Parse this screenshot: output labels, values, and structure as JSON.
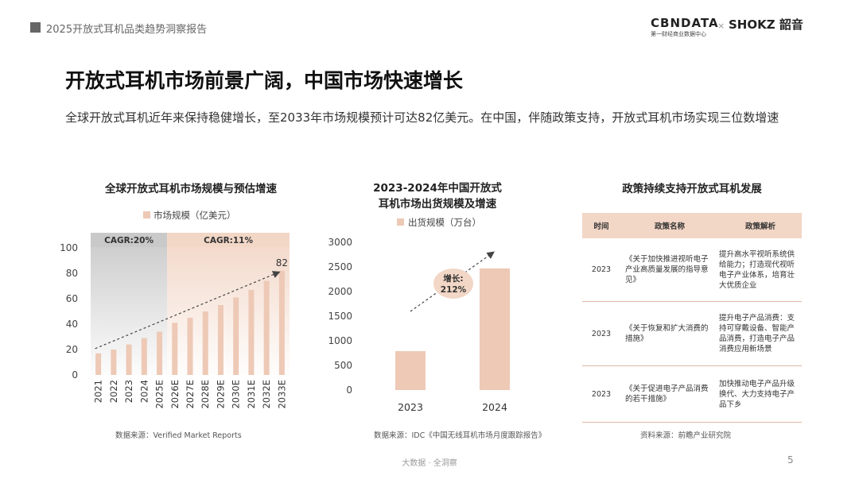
{
  "header": {
    "report_title": "2025开放式耳机品类趋势洞察报告",
    "logo_cbn": "CBNDATA",
    "logo_cbn_sub": "第一财经商业数据中心",
    "logo_separator": "×",
    "logo_shokz": "SHOKZ 韶音"
  },
  "headline": "开放式耳机市场前景广阔，中国市场快速增长",
  "intro": "全球开放式耳机近年来保持稳健增长，至2033年市场规模预计可达82亿美元。在中国，伴随政策支持，开放式耳机市场实现三位数增速",
  "colors": {
    "bar": "#edc9b6",
    "cagr1_band": "#c9c9c9",
    "cagr2_band": "#f2d6c6",
    "accent": "#c0623a"
  },
  "chart_data": [
    {
      "type": "bar",
      "title": "全球开放式耳机市场规模与预估增速",
      "legend": [
        "市场规模（亿美元）"
      ],
      "categories": [
        "2021",
        "2022",
        "2023",
        "2024",
        "2025E",
        "2026E",
        "2027E",
        "2028E",
        "2029E",
        "2030E",
        "2031E",
        "2032E",
        "2033E"
      ],
      "values": [
        17,
        20,
        24,
        29,
        34,
        41,
        45,
        50,
        55,
        61,
        67,
        74,
        82
      ],
      "value_labels": {
        "12": "82"
      },
      "ylim": [
        0,
        100
      ],
      "yticks": [
        "0",
        "20",
        "40",
        "60",
        "80",
        "100"
      ],
      "cagr": [
        {
          "label": "CAGR:20%",
          "from": "2021",
          "to": "2025E"
        },
        {
          "label": "CAGR:11%",
          "from": "2026E",
          "to": "2033E"
        }
      ],
      "source": "数据来源：Verified Market Reports"
    },
    {
      "type": "bar",
      "title": [
        "2023-2024年中国开放式",
        "耳机市场出货规模及增速"
      ],
      "legend": [
        "出货规模（万台）"
      ],
      "categories": [
        "2023",
        "2024"
      ],
      "values": [
        790,
        2470
      ],
      "ylim": [
        0,
        3000
      ],
      "yticks": [
        "0",
        "500",
        "1000",
        "1500",
        "2000",
        "2500",
        "3000"
      ],
      "growth_label": [
        "增长:",
        "212%"
      ],
      "source": "数据来源：IDC《中国无线耳机市场月度跟踪报告》"
    },
    {
      "type": "table",
      "title": "政策持续支持开放式耳机发展",
      "columns": [
        "时间",
        "政策名称",
        "政策解析"
      ],
      "rows": [
        [
          "2023",
          "《关于加快推进视听电子产业高质量发展的指导意见》",
          "提升高水平视听系统供给能力；打造现代视听电子产业体系，培育壮大优质企业"
        ],
        [
          "2023",
          "《关于恢复和扩大消费的措施》",
          "提升电子产品消费：支持可穿戴设备、智能产品消费，打造电子产品消费应用新场景"
        ],
        [
          "2023",
          "《关于促进电子产品消费的若干措施》",
          "加快推动电子产品升级换代、大力支持电子产品下乡"
        ]
      ],
      "source": "资料来源：前瞻产业研究院"
    }
  ],
  "footer": "大数据 · 全洞察",
  "page_number": "5"
}
